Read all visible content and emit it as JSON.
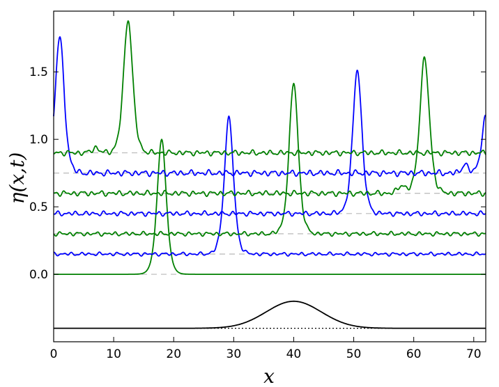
{
  "chart_data": {
    "type": "line",
    "title": "",
    "xlabel": "x",
    "ylabel": "η(x,t)",
    "xlim": [
      0,
      72
    ],
    "ylim": [
      -0.5,
      1.95
    ],
    "xticks": [
      0,
      10,
      20,
      30,
      40,
      50,
      60,
      70
    ],
    "xtick_labels": [
      "0",
      "10",
      "20",
      "30",
      "40",
      "50",
      "60",
      "70"
    ],
    "yticks": [
      0.0,
      0.5,
      1.0,
      1.5
    ],
    "ytick_labels": [
      "0.0",
      "0.5",
      "1.0",
      "1.5"
    ],
    "grid": false,
    "legend": "none",
    "baseline_offsets": [
      0.0,
      0.15,
      0.3,
      0.45,
      0.6,
      0.75,
      0.9
    ],
    "series": [
      {
        "color": "#008000",
        "offset": 0.0,
        "peaks": [
          [
            18.0,
            1.0,
            1.0
          ]
        ],
        "ripple": 0.0
      },
      {
        "color": "#0000ff",
        "offset": 0.15,
        "peaks": [
          [
            29.2,
            1.01,
            1.0
          ]
        ],
        "ripple": 0.012
      },
      {
        "color": "#008000",
        "offset": 0.3,
        "peaks": [
          [
            40.0,
            1.12,
            1.0
          ]
        ],
        "ripple": 0.014
      },
      {
        "color": "#0000ff",
        "offset": 0.45,
        "peaks": [
          [
            50.6,
            1.07,
            1.0
          ]
        ],
        "ripple": 0.016
      },
      {
        "color": "#008000",
        "offset": 0.6,
        "peaks": [
          [
            61.8,
            1.0,
            1.05
          ],
          [
            58.0,
            0.06,
            0.8
          ]
        ],
        "ripple": 0.018
      },
      {
        "color": "#0000ff",
        "offset": 0.75,
        "peaks": [
          [
            1.0,
            1.01,
            1.0
          ],
          [
            72.0,
            0.41,
            0.9
          ],
          [
            68.5,
            0.07,
            0.6
          ]
        ],
        "ripple": 0.02
      },
      {
        "color": "#008000",
        "offset": 0.9,
        "peaks": [
          [
            12.4,
            0.99,
            1.0
          ],
          [
            7.0,
            0.04,
            0.7
          ]
        ],
        "ripple": 0.018
      }
    ],
    "bathymetry": {
      "color": "#000000",
      "baseline": -0.4,
      "center": 40,
      "height": 0.2,
      "width": 6.5,
      "reference_line": "dotted"
    }
  }
}
